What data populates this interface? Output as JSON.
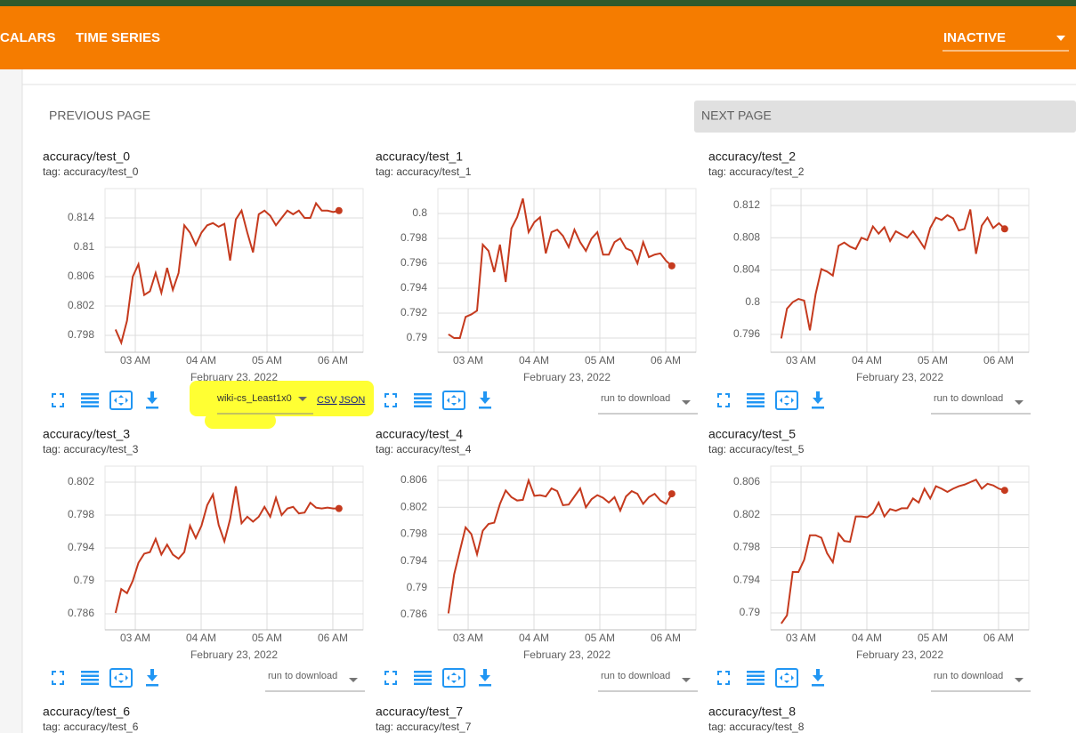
{
  "header": {
    "tabs": [
      "CALARS",
      "TIME SERIES"
    ],
    "run_filter": "INACTIVE"
  },
  "pagination": {
    "previous": "PREVIOUS PAGE",
    "next": "NEXT PAGE"
  },
  "cards": [
    {
      "title": "accuracy/test_0",
      "tag": "tag: accuracy/test_0",
      "download": {
        "run": "wiki-cs_Least1x0",
        "links": [
          "CSV",
          "JSON"
        ]
      },
      "chart_data": {
        "type": "line",
        "color": "#c53a1e",
        "xlabel": "February 23, 2022",
        "xlim": [
          2.54,
          6.46
        ],
        "xticks": [
          {
            "value": 3,
            "label": "03 AM"
          },
          {
            "value": 4,
            "label": "04 AM"
          },
          {
            "value": 5,
            "label": "05 AM"
          },
          {
            "value": 6,
            "label": "06 AM"
          }
        ],
        "ylim": [
          0.7957,
          0.818
        ],
        "yticks": [
          0.798,
          0.802,
          0.806,
          0.81,
          0.814
        ],
        "x": [
          2.7,
          2.787,
          2.874,
          2.961,
          3.048,
          3.135,
          3.222,
          3.309,
          3.396,
          3.483,
          3.57,
          3.657,
          3.744,
          3.831,
          3.918,
          4.005,
          4.092,
          4.179,
          4.266,
          4.353,
          4.44,
          4.527,
          4.614,
          4.701,
          4.788,
          4.875,
          4.962,
          5.049,
          5.136,
          5.223,
          5.31,
          5.397,
          5.484,
          5.571,
          5.658,
          5.745,
          5.832,
          5.919,
          6.006,
          6.093
        ],
        "values": [
          0.7988,
          0.797,
          0.8,
          0.806,
          0.8077,
          0.8035,
          0.804,
          0.8065,
          0.8038,
          0.8072,
          0.8042,
          0.8065,
          0.813,
          0.812,
          0.8103,
          0.812,
          0.813,
          0.8133,
          0.8128,
          0.8132,
          0.8082,
          0.8138,
          0.815,
          0.812,
          0.8093,
          0.8145,
          0.815,
          0.8143,
          0.813,
          0.814,
          0.815,
          0.8145,
          0.815,
          0.814,
          0.814,
          0.816,
          0.815,
          0.815,
          0.8148,
          0.815
        ]
      }
    },
    {
      "title": "accuracy/test_1",
      "tag": "tag: accuracy/test_1",
      "download": {
        "run": "run to download"
      },
      "chart_data": {
        "type": "line",
        "color": "#c53a1e",
        "xlabel": "February 23, 2022",
        "xlim": [
          2.54,
          6.46
        ],
        "xticks": [
          {
            "value": 3,
            "label": "03 AM"
          },
          {
            "value": 4,
            "label": "04 AM"
          },
          {
            "value": 5,
            "label": "05 AM"
          },
          {
            "value": 6,
            "label": "06 AM"
          }
        ],
        "ylim": [
          0.78886,
          0.802
        ],
        "yticks": [
          0.79,
          0.792,
          0.794,
          0.796,
          0.798,
          0.8
        ],
        "x": [
          2.7,
          2.787,
          2.874,
          2.961,
          3.048,
          3.135,
          3.222,
          3.309,
          3.396,
          3.483,
          3.57,
          3.657,
          3.744,
          3.831,
          3.918,
          4.005,
          4.092,
          4.179,
          4.266,
          4.353,
          4.44,
          4.527,
          4.614,
          4.701,
          4.788,
          4.875,
          4.962,
          5.049,
          5.136,
          5.223,
          5.31,
          5.397,
          5.484,
          5.571,
          5.658,
          5.745,
          5.832,
          5.919,
          6.006,
          6.093
        ],
        "values": [
          0.7903,
          0.79,
          0.79,
          0.7917,
          0.7919,
          0.7922,
          0.7975,
          0.797,
          0.7953,
          0.7975,
          0.7945,
          0.7988,
          0.7997,
          0.8012,
          0.7985,
          0.7993,
          0.7997,
          0.7968,
          0.7985,
          0.7987,
          0.7982,
          0.7973,
          0.7987,
          0.7977,
          0.797,
          0.798,
          0.7985,
          0.7967,
          0.7967,
          0.7977,
          0.798,
          0.7972,
          0.797,
          0.796,
          0.7977,
          0.7965,
          0.7967,
          0.7968,
          0.7962,
          0.7958
        ]
      }
    },
    {
      "title": "accuracy/test_2",
      "tag": "tag: accuracy/test_2",
      "download": {
        "run": "run to download"
      },
      "chart_data": {
        "type": "line",
        "color": "#c53a1e",
        "xlabel": "February 23, 2022",
        "xlim": [
          2.54,
          6.46
        ],
        "xticks": [
          {
            "value": 3,
            "label": "03 AM"
          },
          {
            "value": 4,
            "label": "04 AM"
          },
          {
            "value": 5,
            "label": "05 AM"
          },
          {
            "value": 6,
            "label": "06 AM"
          }
        ],
        "ylim": [
          0.79378,
          0.8141
        ],
        "yticks": [
          0.796,
          0.8,
          0.804,
          0.808,
          0.812
        ],
        "x": [
          2.7,
          2.787,
          2.874,
          2.961,
          3.048,
          3.135,
          3.222,
          3.309,
          3.396,
          3.483,
          3.57,
          3.657,
          3.744,
          3.831,
          3.918,
          4.005,
          4.092,
          4.179,
          4.266,
          4.353,
          4.44,
          4.527,
          4.614,
          4.701,
          4.788,
          4.875,
          4.962,
          5.049,
          5.136,
          5.223,
          5.31,
          5.397,
          5.484,
          5.571,
          5.658,
          5.745,
          5.832,
          5.919,
          6.006,
          6.093
        ],
        "values": [
          0.7955,
          0.7992,
          0.8,
          0.8004,
          0.8002,
          0.7965,
          0.801,
          0.8041,
          0.8038,
          0.8033,
          0.807,
          0.8074,
          0.8069,
          0.8066,
          0.808,
          0.8077,
          0.8094,
          0.8085,
          0.8093,
          0.8076,
          0.8088,
          0.8084,
          0.808,
          0.8088,
          0.8078,
          0.8067,
          0.8092,
          0.8105,
          0.8102,
          0.8108,
          0.8104,
          0.8089,
          0.8091,
          0.8115,
          0.806,
          0.8095,
          0.8105,
          0.8092,
          0.8098,
          0.8091
        ]
      }
    },
    {
      "title": "accuracy/test_3",
      "tag": "tag: accuracy/test_3",
      "download": {
        "run": "run to download"
      },
      "chart_data": {
        "type": "line",
        "color": "#c53a1e",
        "xlabel": "February 23, 2022",
        "xlim": [
          2.54,
          6.46
        ],
        "xticks": [
          {
            "value": 3,
            "label": "03 AM"
          },
          {
            "value": 4,
            "label": "04 AM"
          },
          {
            "value": 5,
            "label": "05 AM"
          },
          {
            "value": 6,
            "label": "06 AM"
          }
        ],
        "ylim": [
          0.78405,
          0.80395
        ],
        "yticks": [
          0.786,
          0.79,
          0.794,
          0.798,
          0.802
        ],
        "x": [
          2.7,
          2.787,
          2.874,
          2.961,
          3.048,
          3.135,
          3.222,
          3.309,
          3.396,
          3.483,
          3.57,
          3.657,
          3.744,
          3.831,
          3.918,
          4.005,
          4.092,
          4.179,
          4.266,
          4.353,
          4.44,
          4.527,
          4.614,
          4.701,
          4.788,
          4.875,
          4.962,
          5.049,
          5.136,
          5.223,
          5.31,
          5.397,
          5.484,
          5.571,
          5.658,
          5.745,
          5.832,
          5.919,
          6.006,
          6.093
        ],
        "values": [
          0.7861,
          0.789,
          0.7885,
          0.79,
          0.7922,
          0.7933,
          0.7935,
          0.7951,
          0.7932,
          0.7944,
          0.7932,
          0.7927,
          0.7935,
          0.7967,
          0.7952,
          0.7967,
          0.7992,
          0.8005,
          0.7968,
          0.7948,
          0.7975,
          0.8015,
          0.797,
          0.7978,
          0.7972,
          0.7978,
          0.799,
          0.7978,
          0.8001,
          0.798,
          0.7988,
          0.799,
          0.7982,
          0.7983,
          0.7995,
          0.7989,
          0.7988,
          0.7989,
          0.7988,
          0.7988
        ]
      }
    },
    {
      "title": "accuracy/test_4",
      "tag": "tag: accuracy/test_4",
      "download": {
        "run": "run to download"
      },
      "chart_data": {
        "type": "line",
        "color": "#c53a1e",
        "xlabel": "February 23, 2022",
        "xlim": [
          2.54,
          6.46
        ],
        "xticks": [
          {
            "value": 3,
            "label": "03 AM"
          },
          {
            "value": 4,
            "label": "04 AM"
          },
          {
            "value": 5,
            "label": "05 AM"
          },
          {
            "value": 6,
            "label": "06 AM"
          }
        ],
        "ylim": [
          0.78375,
          0.80812
        ],
        "yticks": [
          0.786,
          0.79,
          0.794,
          0.798,
          0.802,
          0.806
        ],
        "x": [
          2.7,
          2.787,
          2.874,
          2.961,
          3.048,
          3.135,
          3.222,
          3.309,
          3.396,
          3.483,
          3.57,
          3.657,
          3.744,
          3.831,
          3.918,
          4.005,
          4.092,
          4.179,
          4.266,
          4.353,
          4.44,
          4.527,
          4.614,
          4.701,
          4.788,
          4.875,
          4.962,
          5.049,
          5.136,
          5.223,
          5.31,
          5.397,
          5.484,
          5.571,
          5.658,
          5.745,
          5.832,
          5.919,
          6.006,
          6.093
        ],
        "values": [
          0.7862,
          0.792,
          0.7955,
          0.799,
          0.798,
          0.795,
          0.7985,
          0.7995,
          0.7997,
          0.8025,
          0.8045,
          0.8035,
          0.803,
          0.8031,
          0.806,
          0.8037,
          0.8038,
          0.8036,
          0.8048,
          0.8044,
          0.8023,
          0.8024,
          0.8036,
          0.8048,
          0.802,
          0.8032,
          0.8038,
          0.8034,
          0.8027,
          0.8035,
          0.8015,
          0.8036,
          0.8044,
          0.804,
          0.8025,
          0.8035,
          0.804,
          0.803,
          0.8025,
          0.804
        ]
      }
    },
    {
      "title": "accuracy/test_5",
      "tag": "tag: accuracy/test_5",
      "download": {
        "run": "run to download"
      },
      "chart_data": {
        "type": "line",
        "color": "#c53a1e",
        "xlabel": "February 23, 2022",
        "xlim": [
          2.54,
          6.46
        ],
        "xticks": [
          {
            "value": 3,
            "label": "03 AM"
          },
          {
            "value": 4,
            "label": "04 AM"
          },
          {
            "value": 5,
            "label": "05 AM"
          },
          {
            "value": 6,
            "label": "06 AM"
          }
        ],
        "ylim": [
          0.78793,
          0.80796
        ],
        "yticks": [
          0.79,
          0.794,
          0.798,
          0.802,
          0.806
        ],
        "x": [
          2.7,
          2.787,
          2.874,
          2.961,
          3.048,
          3.135,
          3.222,
          3.309,
          3.396,
          3.483,
          3.57,
          3.657,
          3.744,
          3.831,
          3.918,
          4.005,
          4.092,
          4.179,
          4.266,
          4.353,
          4.44,
          4.527,
          4.614,
          4.701,
          4.788,
          4.875,
          4.962,
          5.049,
          5.136,
          5.223,
          5.31,
          5.397,
          5.484,
          5.571,
          5.658,
          5.745,
          5.832,
          5.919,
          6.006,
          6.093
        ],
        "values": [
          0.7887,
          0.7897,
          0.795,
          0.795,
          0.7965,
          0.7995,
          0.7995,
          0.7992,
          0.7973,
          0.7962,
          0.7997,
          0.7988,
          0.7987,
          0.8018,
          0.8018,
          0.8017,
          0.8022,
          0.8035,
          0.8018,
          0.8027,
          0.8025,
          0.8028,
          0.8028,
          0.804,
          0.8035,
          0.8052,
          0.804,
          0.8055,
          0.8052,
          0.8048,
          0.8052,
          0.8055,
          0.8057,
          0.806,
          0.8063,
          0.8052,
          0.8058,
          0.8056,
          0.8052,
          0.805
        ]
      }
    },
    {
      "title": "accuracy/test_6",
      "tag": "tag: accuracy/test_6"
    },
    {
      "title": "accuracy/test_7",
      "tag": "tag: accuracy/test_7"
    },
    {
      "title": "accuracy/test_8",
      "tag": "tag: accuracy/test_8"
    }
  ]
}
